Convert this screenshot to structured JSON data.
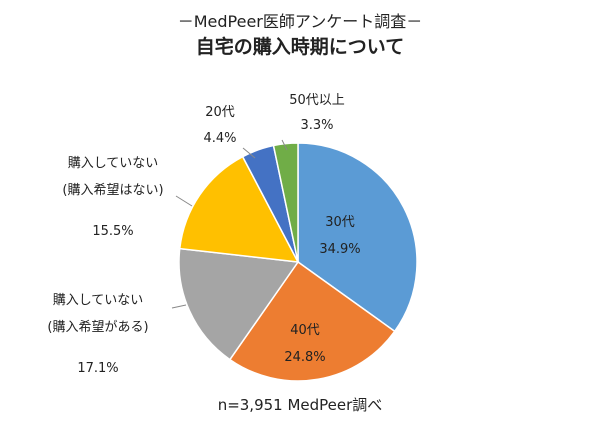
{
  "chart_data": {
    "type": "pie",
    "subtitle": "－MedPeer医師アンケート調査－",
    "title": "自宅の購入時期について",
    "note": "n=3,951 MedPeer調べ",
    "categories": [
      "30代",
      "40代",
      "購入していない\n(購入希望がある)",
      "購入していない\n(購入希望はない)",
      "20代",
      "50代以上"
    ],
    "values": [
      34.9,
      24.8,
      17.1,
      15.5,
      4.4,
      3.3
    ],
    "value_labels": [
      "34.9%",
      "24.8%",
      "17.1%",
      "15.5%",
      "4.4%",
      "3.3%"
    ],
    "colors": [
      "#5b9bd5",
      "#ed7d31",
      "#a5a5a5",
      "#ffc000",
      "#4472c4",
      "#70ad47"
    ]
  }
}
